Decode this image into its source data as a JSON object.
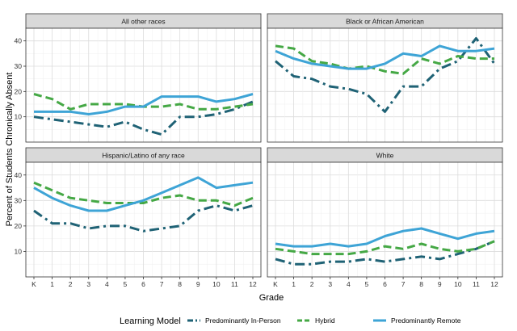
{
  "chart_data": {
    "type": "line",
    "title": "",
    "xlabel": "Grade",
    "ylabel": "Percent of Students Chronically Absent",
    "x": [
      "K",
      "1",
      "2",
      "3",
      "4",
      "5",
      "6",
      "7",
      "8",
      "9",
      "10",
      "11",
      "12"
    ],
    "ylim": [
      0,
      45
    ],
    "yticks": [
      10,
      20,
      30,
      40
    ],
    "grid": true,
    "legend": {
      "title": "Learning Model",
      "placement": "bottom"
    },
    "series_styles": [
      {
        "name": "Predominantly In-Person",
        "color": "#1f6275",
        "dash": "long-dash-dot"
      },
      {
        "name": "Hybrid",
        "color": "#45a845",
        "dash": "dashed"
      },
      {
        "name": "Predominantly Remote",
        "color": "#3ea4d6",
        "dash": "solid"
      }
    ],
    "panels": [
      {
        "title": "All other races",
        "series": [
          {
            "name": "Predominantly In-Person",
            "values": [
              10,
              9,
              8,
              7,
              6,
              8,
              5,
              3,
              10,
              10,
              11,
              13,
              16
            ]
          },
          {
            "name": "Hybrid",
            "values": [
              19,
              17,
              13,
              15,
              15,
              15,
              14,
              14,
              15,
              13,
              13,
              14,
              15
            ]
          },
          {
            "name": "Predominantly Remote",
            "values": [
              12,
              12,
              12,
              11,
              12,
              14,
              14,
              18,
              18,
              18,
              16,
              17,
              19
            ]
          }
        ]
      },
      {
        "title": "Black or African American",
        "series": [
          {
            "name": "Predominantly In-Person",
            "values": [
              32,
              26,
              25,
              22,
              21,
              19,
              12,
              22,
              22,
              29,
              32,
              41,
              31
            ]
          },
          {
            "name": "Hybrid",
            "values": [
              38,
              37,
              32,
              31,
              29,
              30,
              28,
              27,
              33,
              31,
              34,
              33,
              33
            ]
          },
          {
            "name": "Predominantly Remote",
            "values": [
              36,
              33,
              31,
              30,
              29,
              29,
              31,
              35,
              34,
              38,
              36,
              36,
              37
            ]
          }
        ]
      },
      {
        "title": "Hispanic/Latino of any race",
        "series": [
          {
            "name": "Predominantly In-Person",
            "values": [
              26,
              21,
              21,
              19,
              20,
              20,
              18,
              19,
              20,
              26,
              28,
              26,
              28
            ]
          },
          {
            "name": "Hybrid",
            "values": [
              37,
              34,
              31,
              30,
              29,
              29,
              29,
              31,
              32,
              30,
              30,
              28,
              31
            ]
          },
          {
            "name": "Predominantly Remote",
            "values": [
              35,
              31,
              28,
              26,
              26,
              28,
              30,
              33,
              36,
              39,
              35,
              36,
              37
            ]
          }
        ]
      },
      {
        "title": "White",
        "series": [
          {
            "name": "Predominantly In-Person",
            "values": [
              7,
              5,
              5,
              6,
              6,
              7,
              6,
              7,
              8,
              7,
              9,
              11,
              14
            ]
          },
          {
            "name": "Hybrid",
            "values": [
              11,
              10,
              9,
              9,
              9,
              10,
              12,
              11,
              13,
              11,
              10,
              11,
              14
            ]
          },
          {
            "name": "Predominantly Remote",
            "values": [
              13,
              12,
              12,
              13,
              12,
              13,
              16,
              18,
              19,
              17,
              15,
              17,
              18
            ]
          }
        ]
      }
    ]
  }
}
